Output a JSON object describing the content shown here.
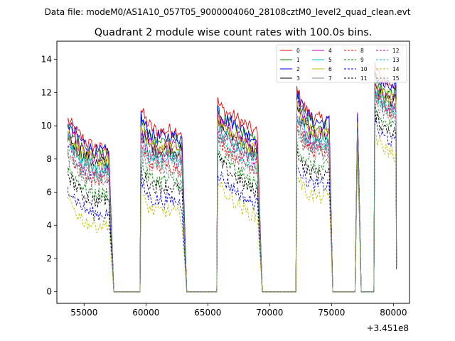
{
  "suptitle": "Data file: modeM0/AS1A10_057T05_9000004060_28108cztM0_level2_quad_clean.evt",
  "chart_data": {
    "type": "line",
    "title": "Quadrant 2 module wise count rates with 100.0s bins.",
    "xlabel": "",
    "ylabel": "",
    "x_offset_label": "+3.451e8",
    "xlim": [
      52800,
      81300
    ],
    "ylim": [
      -0.7,
      15.1
    ],
    "xticks": [
      55000,
      60000,
      65000,
      70000,
      75000,
      80000
    ],
    "xtick_labels": [
      "55000",
      "60000",
      "65000",
      "70000",
      "75000",
      "80000"
    ],
    "yticks": [
      0,
      2,
      4,
      6,
      8,
      10,
      12,
      14
    ],
    "ytick_labels": [
      "0",
      "2",
      "4",
      "6",
      "8",
      "10",
      "12",
      "14"
    ],
    "legend_position": "top-right",
    "segments": [
      {
        "start": 53700,
        "end": 57000,
        "fall_end": 57400
      },
      {
        "start": 59600,
        "end": 62900,
        "fall_end": 63300
      },
      {
        "start": 65800,
        "end": 69000,
        "fall_end": 69400
      },
      {
        "start": 72200,
        "end": 74800,
        "fall_end": 75100
      },
      {
        "start": 77100,
        "end": 77100,
        "fall_end": 77400
      },
      {
        "start": 78500,
        "end": 80200,
        "fall_end": 80200
      }
    ],
    "series": [
      {
        "name": "0",
        "color": "#ff0000",
        "dash": "solid",
        "levels": [
          9.3,
          10.0,
          10.4,
          11.0,
          10.8,
          12.8
        ]
      },
      {
        "name": "1",
        "color": "#008000",
        "dash": "solid",
        "levels": [
          8.9,
          9.4,
          9.8,
          10.6,
          10.5,
          12.2
        ]
      },
      {
        "name": "2",
        "color": "#0000ff",
        "dash": "solid",
        "levels": [
          9.1,
          9.6,
          10.0,
          10.8,
          10.7,
          12.5
        ]
      },
      {
        "name": "3",
        "color": "#000000",
        "dash": "solid",
        "levels": [
          8.4,
          8.8,
          9.2,
          10.0,
          10.2,
          11.8
        ]
      },
      {
        "name": "4",
        "color": "#bf00bf",
        "dash": "solid",
        "levels": [
          8.6,
          9.0,
          9.4,
          10.2,
          10.3,
          12.0
        ]
      },
      {
        "name": "5",
        "color": "#00bfbf",
        "dash": "solid",
        "levels": [
          8.2,
          8.5,
          8.9,
          9.6,
          10.0,
          11.5
        ]
      },
      {
        "name": "6",
        "color": "#bfbf00",
        "dash": "solid",
        "levels": [
          8.5,
          8.9,
          9.3,
          10.1,
          10.2,
          11.9
        ]
      },
      {
        "name": "7",
        "color": "#808080",
        "dash": "solid",
        "levels": [
          8.0,
          8.4,
          8.8,
          9.5,
          9.9,
          11.4
        ]
      },
      {
        "name": "8",
        "color": "#ff0000",
        "dash": "dashed",
        "levels": [
          7.4,
          7.8,
          8.2,
          9.0,
          9.6,
          11.0
        ]
      },
      {
        "name": "9",
        "color": "#008000",
        "dash": "dashed",
        "levels": [
          6.5,
          6.9,
          7.3,
          8.0,
          9.0,
          10.2
        ]
      },
      {
        "name": "10",
        "color": "#0000ff",
        "dash": "dashed",
        "levels": [
          5.3,
          5.7,
          6.1,
          6.9,
          8.6,
          9.3
        ]
      },
      {
        "name": "11",
        "color": "#000000",
        "dash": "dashed",
        "levels": [
          6.1,
          6.5,
          6.9,
          7.6,
          8.8,
          9.9
        ]
      },
      {
        "name": "12",
        "color": "#bf00bf",
        "dash": "dashed",
        "levels": [
          7.8,
          8.2,
          8.6,
          9.4,
          9.8,
          11.3
        ]
      },
      {
        "name": "13",
        "color": "#00bfbf",
        "dash": "dashed",
        "levels": [
          7.6,
          8.0,
          8.4,
          9.2,
          9.7,
          11.1
        ]
      },
      {
        "name": "14",
        "color": "#bfbf00",
        "dash": "dashed",
        "levels": [
          4.6,
          5.0,
          5.4,
          6.2,
          8.4,
          8.6
        ]
      },
      {
        "name": "15",
        "color": "#808080",
        "dash": "dashed",
        "levels": [
          7.2,
          7.6,
          8.0,
          8.8,
          9.5,
          10.8
        ]
      }
    ]
  }
}
